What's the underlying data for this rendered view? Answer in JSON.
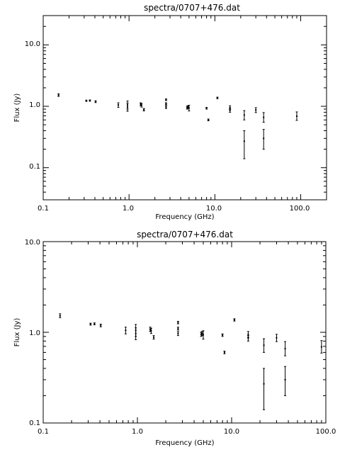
{
  "chart_data": [
    {
      "type": "scatter",
      "title": "spectra/0707+476.dat",
      "xlabel": "Frequency (GHz)",
      "ylabel": "Flux (Jy)",
      "x_scale": "log",
      "y_scale": "log",
      "xlim": [
        0.1,
        200
      ],
      "ylim": [
        0.03,
        30
      ],
      "x_ticks": [
        "0.1",
        "1.0",
        "10.0",
        "100.0"
      ],
      "y_ticks": [
        "0.1",
        "1.0",
        "10.0"
      ],
      "points": [
        {
          "x": 0.151,
          "y": 1.52,
          "lo": 1.45,
          "hi": 1.6
        },
        {
          "x": 0.318,
          "y": 1.23,
          "lo": 1.2,
          "hi": 1.26
        },
        {
          "x": 0.35,
          "y": 1.24,
          "lo": 1.21,
          "hi": 1.27
        },
        {
          "x": 0.408,
          "y": 1.19,
          "lo": 1.15,
          "hi": 1.23
        },
        {
          "x": 0.75,
          "y": 1.05,
          "lo": 0.96,
          "hi": 1.14
        },
        {
          "x": 0.96,
          "y": 1.05,
          "lo": 0.9,
          "hi": 1.22
        },
        {
          "x": 0.96,
          "y": 0.97,
          "lo": 0.83,
          "hi": 1.12
        },
        {
          "x": 1.365,
          "y": 1.08,
          "lo": 1.02,
          "hi": 1.14
        },
        {
          "x": 1.4,
          "y": 1.04,
          "lo": 0.97,
          "hi": 1.11
        },
        {
          "x": 1.49,
          "y": 0.88,
          "lo": 0.84,
          "hi": 0.92
        },
        {
          "x": 2.7,
          "y": 1.28,
          "lo": 1.24,
          "hi": 1.32
        },
        {
          "x": 2.7,
          "y": 1.1,
          "lo": 1.06,
          "hi": 1.14
        },
        {
          "x": 2.7,
          "y": 0.97,
          "lo": 0.92,
          "hi": 1.02
        },
        {
          "x": 4.75,
          "y": 0.95,
          "lo": 0.9,
          "hi": 1.0
        },
        {
          "x": 4.85,
          "y": 0.97,
          "lo": 0.92,
          "hi": 1.02
        },
        {
          "x": 5.0,
          "y": 0.94,
          "lo": 0.84,
          "hi": 1.04
        },
        {
          "x": 8.0,
          "y": 0.93,
          "lo": 0.9,
          "hi": 0.96
        },
        {
          "x": 8.4,
          "y": 0.6,
          "lo": 0.58,
          "hi": 0.62
        },
        {
          "x": 10.7,
          "y": 1.37,
          "lo": 1.33,
          "hi": 1.41
        },
        {
          "x": 15.0,
          "y": 0.95,
          "lo": 0.88,
          "hi": 1.02
        },
        {
          "x": 15.0,
          "y": 0.86,
          "lo": 0.8,
          "hi": 0.92
        },
        {
          "x": 22.0,
          "y": 0.72,
          "lo": 0.6,
          "hi": 0.85
        },
        {
          "x": 22.0,
          "y": 0.27,
          "lo": 0.14,
          "hi": 0.4
        },
        {
          "x": 30.0,
          "y": 0.87,
          "lo": 0.79,
          "hi": 0.95
        },
        {
          "x": 37.0,
          "y": 0.66,
          "lo": 0.55,
          "hi": 0.79
        },
        {
          "x": 37.0,
          "y": 0.3,
          "lo": 0.2,
          "hi": 0.42
        },
        {
          "x": 90.0,
          "y": 0.69,
          "lo": 0.59,
          "hi": 0.81
        }
      ]
    },
    {
      "type": "scatter",
      "title": "spectra/0707+476.dat",
      "xlabel": "Frequency (GHz)",
      "ylabel": "Flux (Jy)",
      "x_scale": "log",
      "y_scale": "log",
      "xlim": [
        0.1,
        100
      ],
      "ylim": [
        0.1,
        10
      ],
      "x_ticks": [
        "0.1",
        "1.0",
        "10.0",
        "100.0"
      ],
      "y_ticks": [
        "0.1",
        "1.0",
        "10.0"
      ],
      "points": [
        {
          "x": 0.151,
          "y": 1.52,
          "lo": 1.45,
          "hi": 1.6
        },
        {
          "x": 0.318,
          "y": 1.23,
          "lo": 1.2,
          "hi": 1.26
        },
        {
          "x": 0.35,
          "y": 1.24,
          "lo": 1.21,
          "hi": 1.27
        },
        {
          "x": 0.408,
          "y": 1.19,
          "lo": 1.15,
          "hi": 1.23
        },
        {
          "x": 0.75,
          "y": 1.05,
          "lo": 0.96,
          "hi": 1.14
        },
        {
          "x": 0.96,
          "y": 1.05,
          "lo": 0.9,
          "hi": 1.22
        },
        {
          "x": 0.96,
          "y": 0.97,
          "lo": 0.83,
          "hi": 1.12
        },
        {
          "x": 1.365,
          "y": 1.08,
          "lo": 1.02,
          "hi": 1.14
        },
        {
          "x": 1.4,
          "y": 1.04,
          "lo": 0.97,
          "hi": 1.11
        },
        {
          "x": 1.49,
          "y": 0.88,
          "lo": 0.84,
          "hi": 0.92
        },
        {
          "x": 2.7,
          "y": 1.28,
          "lo": 1.24,
          "hi": 1.32
        },
        {
          "x": 2.7,
          "y": 1.1,
          "lo": 1.06,
          "hi": 1.14
        },
        {
          "x": 2.7,
          "y": 0.97,
          "lo": 0.92,
          "hi": 1.02
        },
        {
          "x": 4.75,
          "y": 0.95,
          "lo": 0.9,
          "hi": 1.0
        },
        {
          "x": 4.85,
          "y": 0.97,
          "lo": 0.92,
          "hi": 1.02
        },
        {
          "x": 5.0,
          "y": 0.94,
          "lo": 0.84,
          "hi": 1.04
        },
        {
          "x": 8.0,
          "y": 0.93,
          "lo": 0.9,
          "hi": 0.96
        },
        {
          "x": 8.4,
          "y": 0.6,
          "lo": 0.58,
          "hi": 0.62
        },
        {
          "x": 10.7,
          "y": 1.37,
          "lo": 1.33,
          "hi": 1.41
        },
        {
          "x": 15.0,
          "y": 0.95,
          "lo": 0.88,
          "hi": 1.02
        },
        {
          "x": 15.0,
          "y": 0.86,
          "lo": 0.8,
          "hi": 0.92
        },
        {
          "x": 22.0,
          "y": 0.72,
          "lo": 0.6,
          "hi": 0.85
        },
        {
          "x": 22.0,
          "y": 0.27,
          "lo": 0.14,
          "hi": 0.4
        },
        {
          "x": 30.0,
          "y": 0.87,
          "lo": 0.79,
          "hi": 0.95
        },
        {
          "x": 37.0,
          "y": 0.66,
          "lo": 0.55,
          "hi": 0.79
        },
        {
          "x": 37.0,
          "y": 0.3,
          "lo": 0.2,
          "hi": 0.42
        },
        {
          "x": 90.0,
          "y": 0.69,
          "lo": 0.59,
          "hi": 0.81
        }
      ]
    }
  ]
}
